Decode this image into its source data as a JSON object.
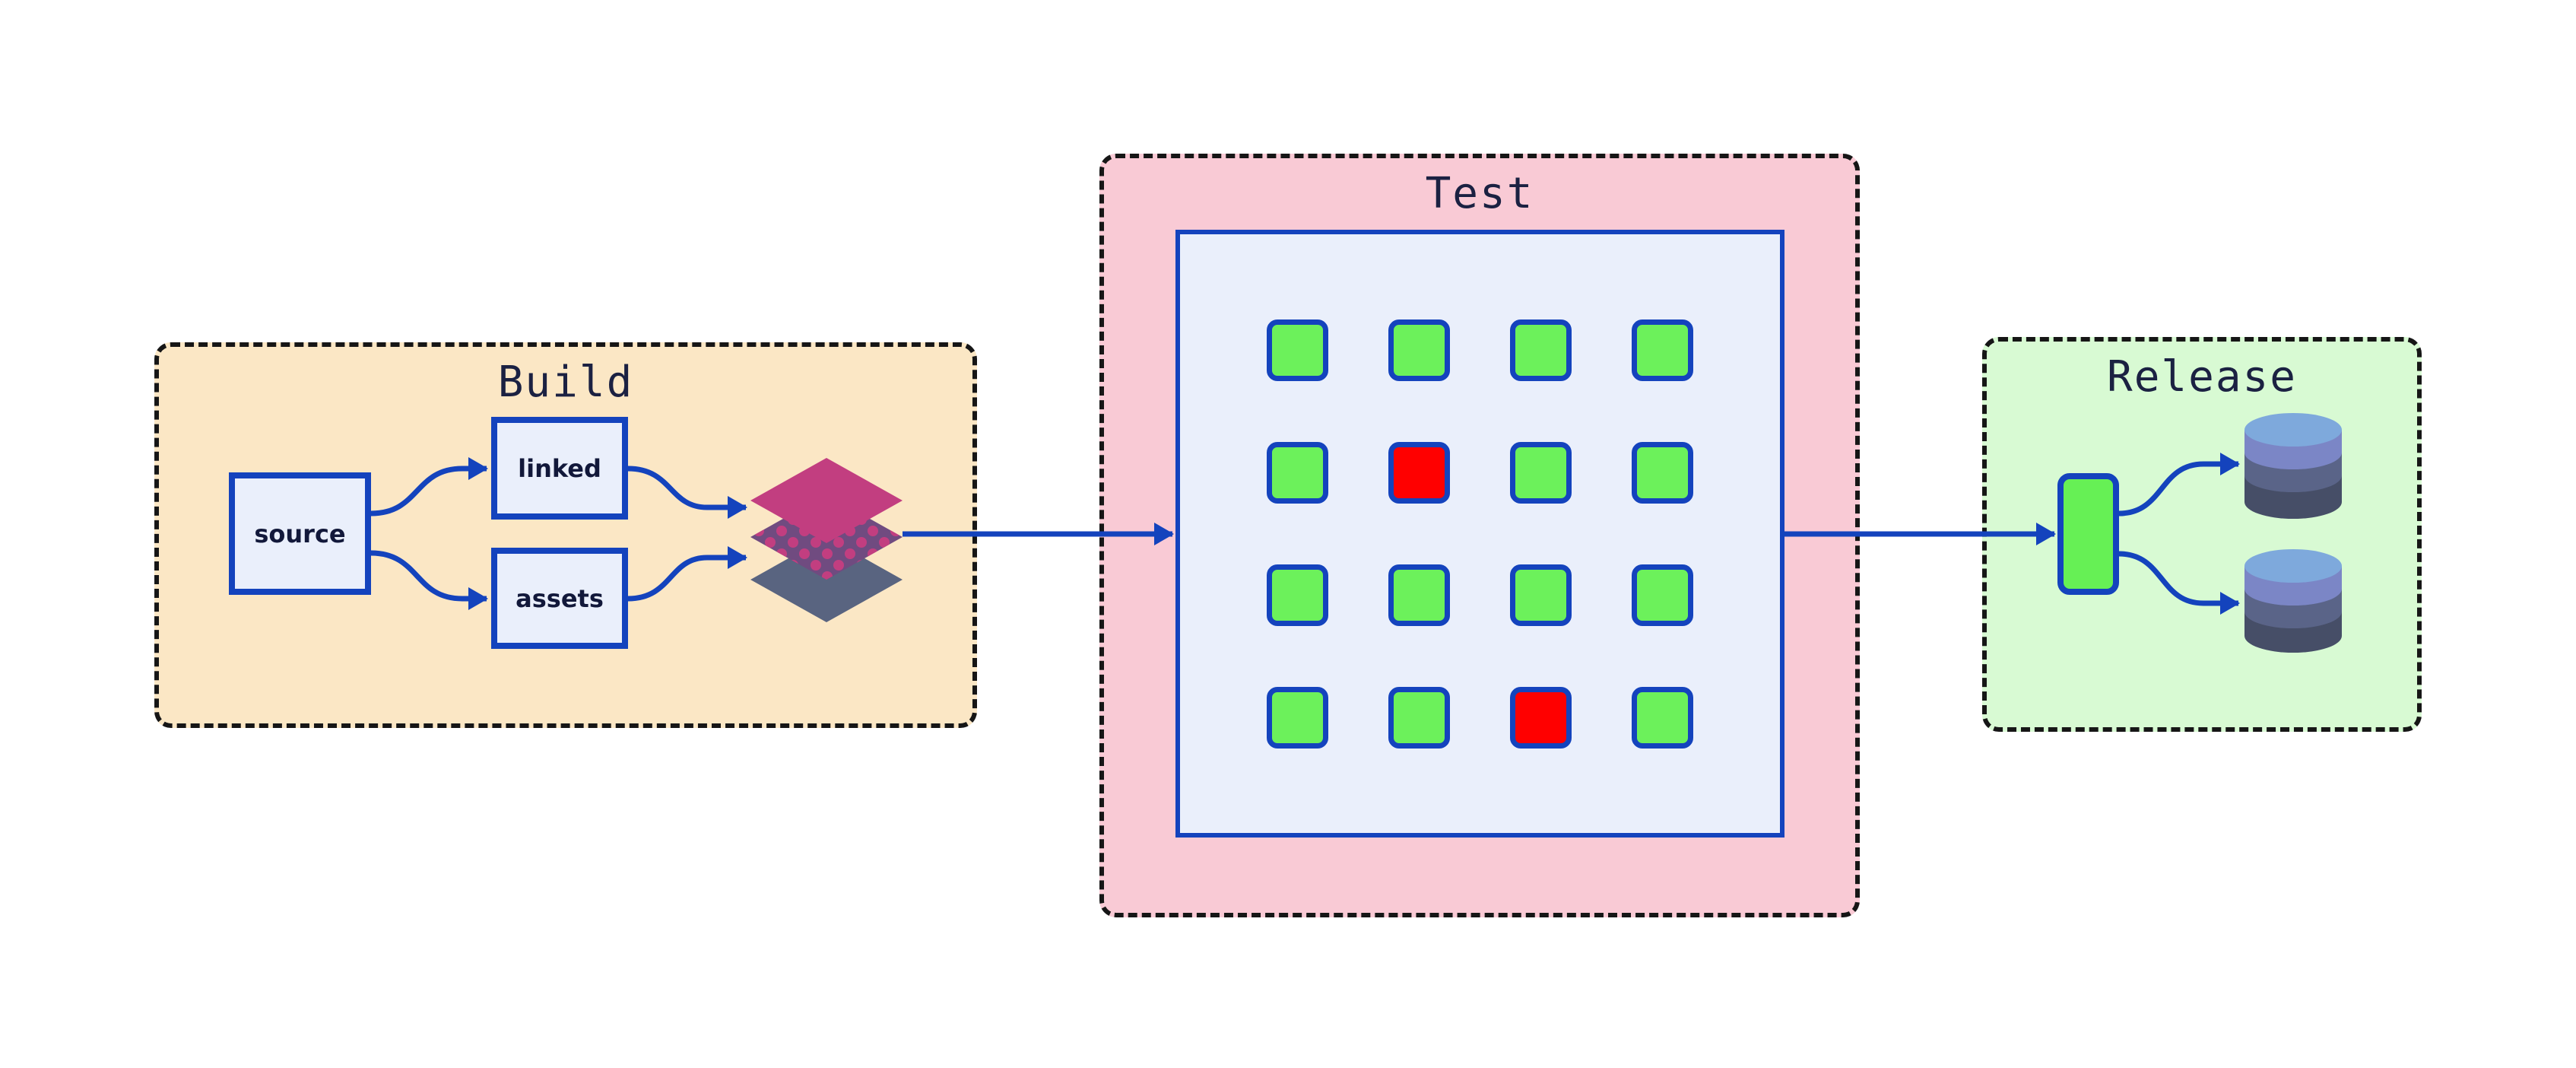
{
  "diagram": {
    "kind": "ci-cd-pipeline",
    "background": "#ffffff",
    "stages": [
      {
        "id": "build",
        "title": "Build",
        "fill": "#fbe7c5"
      },
      {
        "id": "test",
        "title": "Test",
        "fill": "#f9cad5"
      },
      {
        "id": "release",
        "title": "Release",
        "fill": "#d8fad3"
      }
    ]
  },
  "build": {
    "title": "Build",
    "nodes": [
      {
        "id": "source",
        "label": "source"
      },
      {
        "id": "linked",
        "label": "linked"
      },
      {
        "id": "assets",
        "label": "assets"
      }
    ],
    "output_icon": "layers-icon"
  },
  "test": {
    "title": "Test",
    "grid": {
      "rows": 4,
      "cols": 4,
      "cells": [
        "pass",
        "pass",
        "pass",
        "pass",
        "pass",
        "fail",
        "pass",
        "pass",
        "pass",
        "pass",
        "pass",
        "pass",
        "pass",
        "pass",
        "fail",
        "pass"
      ],
      "pass_count": 14,
      "fail_count": 2
    }
  },
  "release": {
    "title": "Release",
    "artifact_icon": "package-node",
    "target_icons": [
      "database-icon",
      "database-icon"
    ]
  },
  "edges": [
    {
      "from": "source",
      "to": "linked"
    },
    {
      "from": "source",
      "to": "assets"
    },
    {
      "from": "linked",
      "to": "layers-stack"
    },
    {
      "from": "assets",
      "to": "layers-stack"
    },
    {
      "from": "layers-stack",
      "to": "test-panel"
    },
    {
      "from": "test-panel",
      "to": "release-artifact"
    },
    {
      "from": "release-artifact",
      "to": "database-top"
    },
    {
      "from": "release-artifact",
      "to": "database-bottom"
    }
  ],
  "colors": {
    "accent_blue": "#1443bd",
    "dashed_border": "#161616",
    "stage_build_fill": "#fbe7c5",
    "stage_test_fill": "#f9cad5",
    "stage_release_fill": "#d8fad3",
    "node_fill": "#eaeffb",
    "pass_green": "#6cf15b",
    "fail_red": "#ff0000",
    "artifact_green": "#66f055",
    "layer_top": "#c23e80",
    "layer_mid": "#704b80",
    "layer_mid_dots": "#c23e80",
    "layer_bottom": "#596480",
    "db_top": "#7ea9dc",
    "db_band1": "#7b86c6",
    "db_band2": "#5a6488",
    "db_band3": "#464e67",
    "title_text": "#1b2142",
    "label_text": "#12183a"
  }
}
